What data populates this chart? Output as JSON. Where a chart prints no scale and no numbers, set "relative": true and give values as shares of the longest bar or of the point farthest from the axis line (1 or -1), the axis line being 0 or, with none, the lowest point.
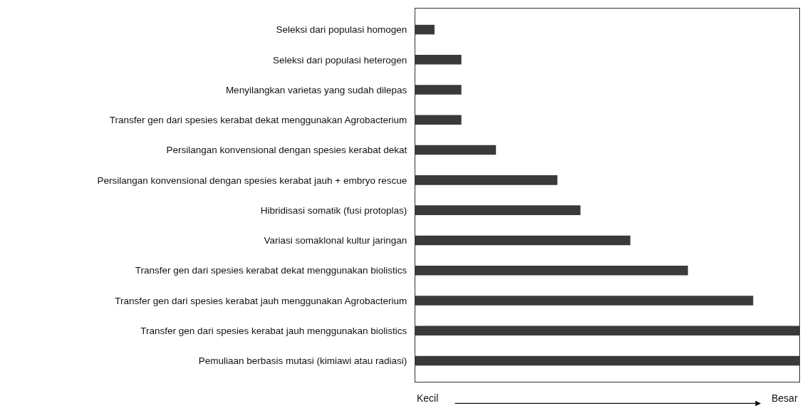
{
  "chart_data": {
    "type": "bar",
    "orientation": "horizontal",
    "relative": true,
    "categories": [
      "Seleksi dari populasi homogen",
      "Seleksi dari populasi heterogen",
      "Menyilangkan varietas yang sudah dilepas",
      "Transfer gen dari spesies kerabat dekat menggunakan Agrobacterium",
      "Persilangan konvensional dengan spesies kerabat dekat",
      "Persilangan konvensional dengan spesies kerabat jauh + embryo rescue",
      "Hibridisasi somatik (fusi protoplas)",
      "Variasi somaklonal kultur jaringan",
      "Transfer gen dari spesies kerabat dekat menggunakan biolistics",
      "Transfer gen dari spesies kerabat jauh menggunakan Agrobacterium",
      "Transfer gen dari spesies kerabat jauh menggunakan biolistics",
      "Pemuliaan berbasis mutasi (kimiawi atau radiasi)"
    ],
    "values": [
      0.05,
      0.12,
      0.12,
      0.12,
      0.21,
      0.37,
      0.43,
      0.56,
      0.71,
      0.88,
      1,
      1
    ],
    "color": "#3a3a3a",
    "annotations": [
      "Kecil",
      "Besar"
    ]
  }
}
